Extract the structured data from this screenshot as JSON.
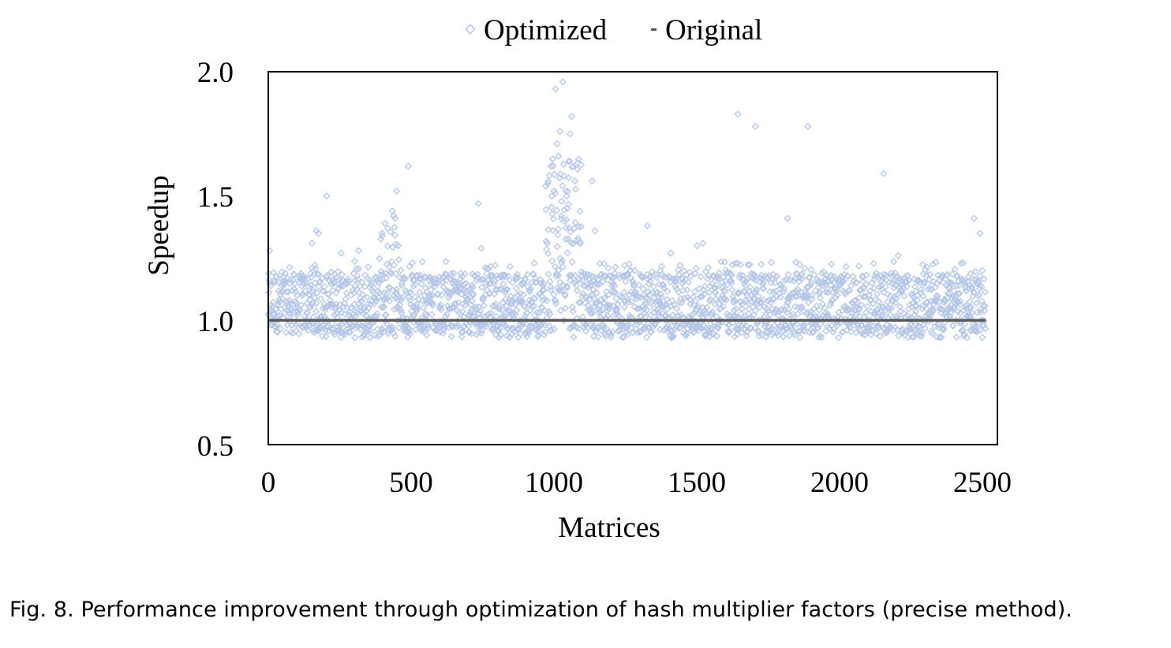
{
  "caption": "Fig. 8.  Performance improvement through optimization of hash multiplier factors (precise method).",
  "chart_data": {
    "type": "scatter",
    "title": "",
    "xlabel": "Matrices",
    "ylabel": "Speedup",
    "xlim": [
      0,
      2500
    ],
    "ylim": [
      0.5,
      2.0
    ],
    "xticks": [
      "0",
      "500",
      "1000",
      "1500",
      "2000",
      "2500"
    ],
    "yticks": [
      "2.0",
      "1.5",
      "1.0",
      "0.5"
    ],
    "grid": false,
    "legend_position": "top-center",
    "legend": [
      "Optimized",
      "Original"
    ],
    "series": [
      {
        "name": "Optimized",
        "marker": "hollow-diamond",
        "color": "#b4c6e7",
        "n_points": 2460,
        "typical_range": [
          0.93,
          1.24
        ],
        "notable_points": [
          [
            5,
            1.28
          ],
          [
            150,
            1.31
          ],
          [
            165,
            1.36
          ],
          [
            172,
            1.35
          ],
          [
            200,
            1.5
          ],
          [
            250,
            1.27
          ],
          [
            310,
            1.28
          ],
          [
            390,
            1.35
          ],
          [
            400,
            1.39
          ],
          [
            410,
            1.37
          ],
          [
            425,
            1.44
          ],
          [
            430,
            1.42
          ],
          [
            435,
            1.41
          ],
          [
            440,
            1.52
          ],
          [
            445,
            1.3
          ],
          [
            480,
            1.62
          ],
          [
            720,
            1.47
          ],
          [
            730,
            1.29
          ],
          [
            960,
            1.56
          ],
          [
            970,
            1.62
          ],
          [
            980,
            1.52
          ],
          [
            985,
            1.93
          ],
          [
            990,
            1.71
          ],
          [
            995,
            1.66
          ],
          [
            1000,
            1.76
          ],
          [
            1005,
            1.42
          ],
          [
            1010,
            1.96
          ],
          [
            1015,
            1.58
          ],
          [
            1020,
            1.52
          ],
          [
            1025,
            1.45
          ],
          [
            1030,
            1.64
          ],
          [
            1035,
            1.75
          ],
          [
            1040,
            1.82
          ],
          [
            1045,
            1.62
          ],
          [
            1050,
            1.37
          ],
          [
            1060,
            1.32
          ],
          [
            1110,
            1.56
          ],
          [
            1120,
            1.36
          ],
          [
            1300,
            1.38
          ],
          [
            1380,
            1.27
          ],
          [
            1470,
            1.3
          ],
          [
            1490,
            1.31
          ],
          [
            1610,
            1.83
          ],
          [
            1670,
            1.78
          ],
          [
            1780,
            1.41
          ],
          [
            1850,
            1.78
          ],
          [
            2110,
            1.59
          ],
          [
            2160,
            1.26
          ],
          [
            2420,
            1.41
          ],
          [
            2440,
            1.35
          ]
        ]
      },
      {
        "name": "Original",
        "marker": "line",
        "color": "#595959",
        "x": [
          0,
          2460
        ],
        "y": [
          1.0,
          1.0
        ]
      }
    ]
  }
}
